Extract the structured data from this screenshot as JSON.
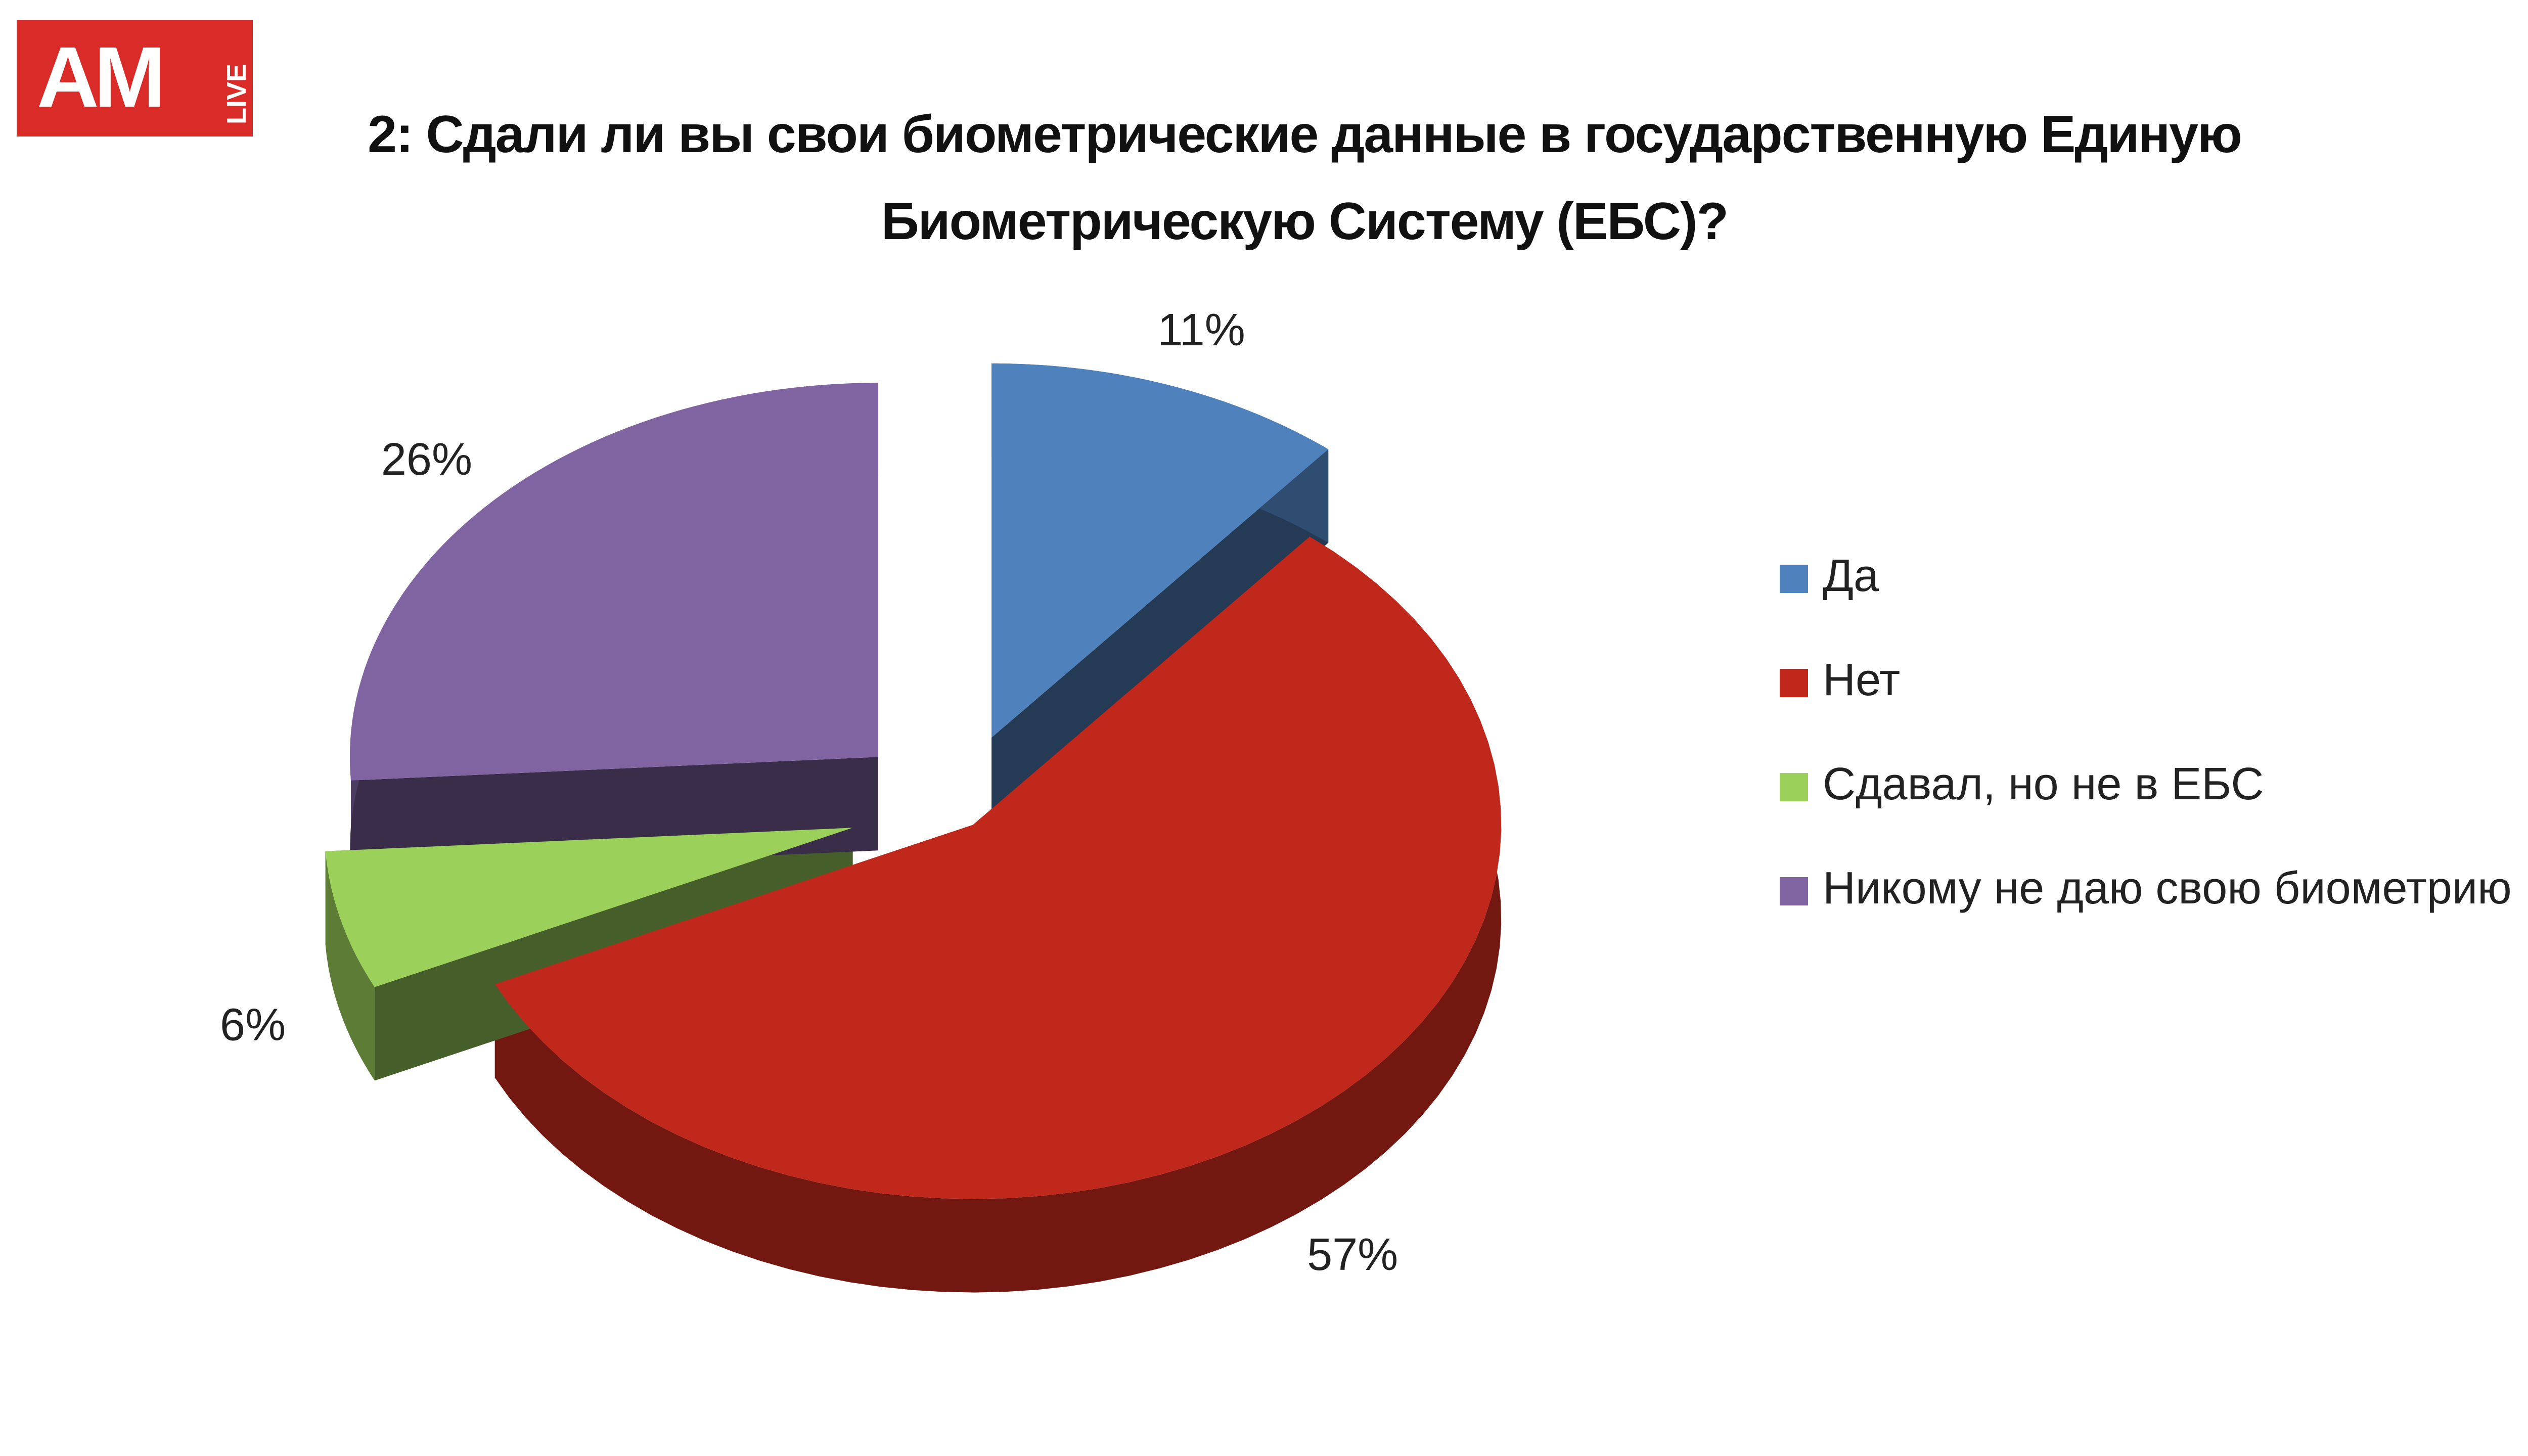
{
  "logo": {
    "main": "AM",
    "side": "LIVE"
  },
  "chart_data": {
    "type": "pie",
    "title": "2: Сдали ли вы свои биометрические данные в государственную Единую Биометрическую Систему (ЕБС)?",
    "categories": [
      "Да",
      "Нет",
      "Сдавал, но не в ЕБС",
      "Никому не даю свою биометрию"
    ],
    "values": [
      11,
      57,
      6,
      26
    ],
    "value_labels": [
      "11%",
      "57%",
      "6%",
      "26%"
    ],
    "colors": [
      "#4f81bd",
      "#c0281c",
      "#9bd15a",
      "#8064a2"
    ],
    "legend": "right"
  }
}
